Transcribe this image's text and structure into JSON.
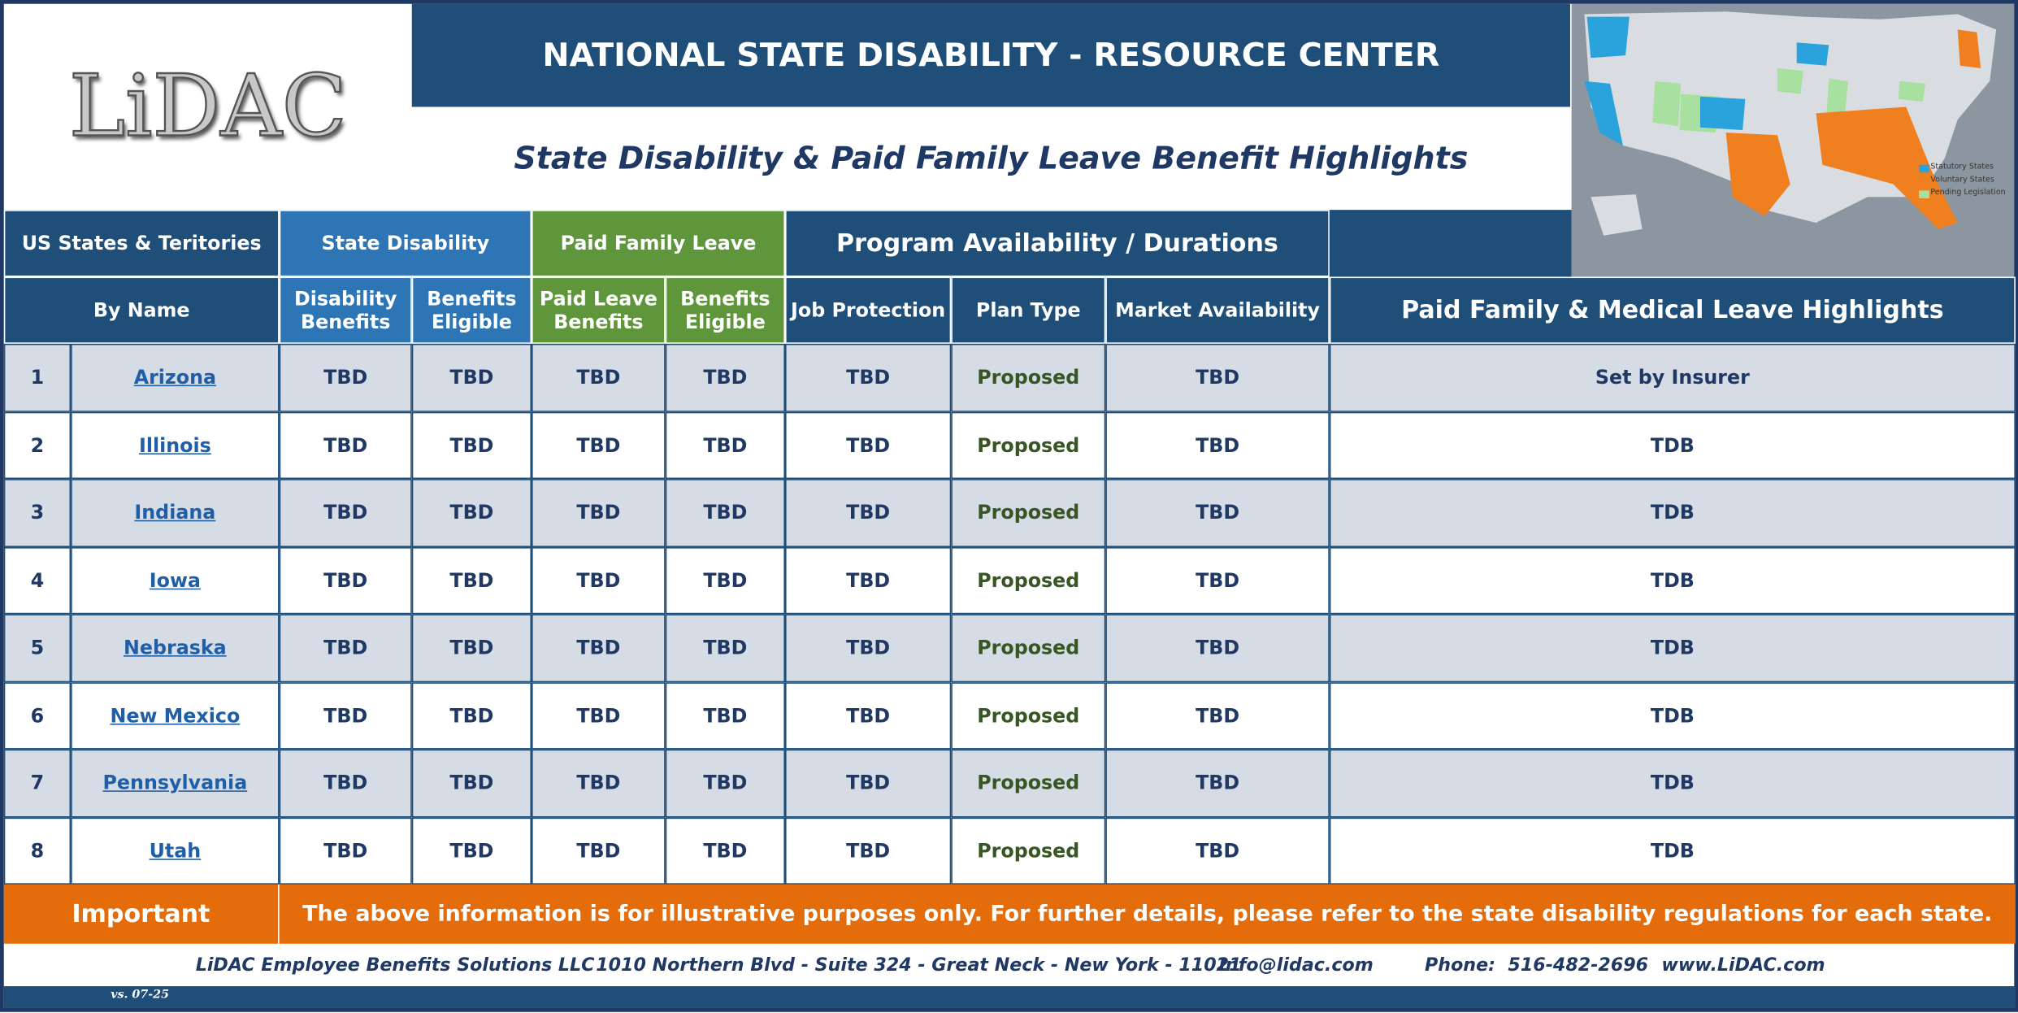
{
  "header": {
    "logo": "LiDAC",
    "title": "NATIONAL STATE DISABILITY - RESOURCE CENTER",
    "subtitle": "State Disability & Paid Family Leave Benefit Highlights",
    "map_legend": [
      "Statutory States",
      "Voluntary States",
      "Pending Legislation"
    ]
  },
  "table": {
    "group_headers": [
      "US States & Teritories",
      "State Disability",
      "Paid Family Leave",
      "Program Availability / Durations"
    ],
    "column_headers": [
      "By Name",
      "Disability Benefits",
      "Benefits Eligible",
      "Paid Leave Benefits",
      "Benefits Eligible",
      "Job Protection",
      "Plan Type",
      "Market Availability",
      "Paid Family & Medical Leave Highlights"
    ],
    "rows": [
      [
        1,
        "Arizona",
        "TBD",
        "TBD",
        "TBD",
        "TBD",
        "TBD",
        "Proposed",
        "TBD",
        "Set by Insurer"
      ],
      [
        2,
        "Illinois",
        "TBD",
        "TBD",
        "TBD",
        "TBD",
        "TBD",
        "Proposed",
        "TBD",
        "TDB"
      ],
      [
        3,
        "Indiana",
        "TBD",
        "TBD",
        "TBD",
        "TBD",
        "TBD",
        "Proposed",
        "TBD",
        "TDB"
      ],
      [
        4,
        "Iowa",
        "TBD",
        "TBD",
        "TBD",
        "TBD",
        "TBD",
        "Proposed",
        "TBD",
        "TDB"
      ],
      [
        5,
        "Nebraska",
        "TBD",
        "TBD",
        "TBD",
        "TBD",
        "TBD",
        "Proposed",
        "TBD",
        "TDB"
      ],
      [
        6,
        "New Mexico",
        "TBD",
        "TBD",
        "TBD",
        "TBD",
        "TBD",
        "Proposed",
        "TBD",
        "TDB"
      ],
      [
        7,
        "Pennsylvania",
        "TBD",
        "TBD",
        "TBD",
        "TBD",
        "TBD",
        "Proposed",
        "TBD",
        "TDB"
      ],
      [
        8,
        "Utah",
        "TBD",
        "TBD",
        "TBD",
        "TBD",
        "TBD",
        "Proposed",
        "TBD",
        "TDB"
      ]
    ]
  },
  "notice": {
    "label": "Important",
    "text": "The above information is for illustrative purposes only. For further details, please refer to the state disability regulations for each state."
  },
  "footer": {
    "items": [
      "LiDAC Employee Benefits Solutions LLC",
      "1010 Northern Blvd - Suite 324 - Great Neck - New York - 11021",
      "Info@lidac.com",
      "Phone:  516-482-2696",
      "www.LiDAC.com"
    ],
    "version": "vs. 07-25"
  }
}
